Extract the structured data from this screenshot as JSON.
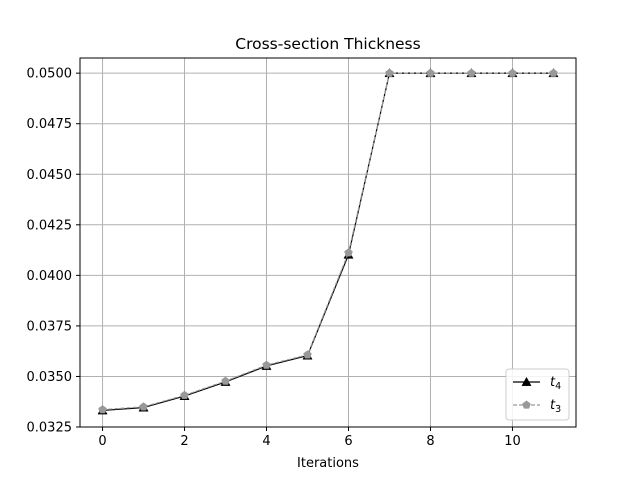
{
  "chart_data": {
    "type": "line",
    "title": "Cross-section Thickness",
    "xlabel": "Iterations",
    "ylabel": "",
    "xlim": [
      -0.55,
      11.55
    ],
    "ylim": [
      0.0325,
      0.05075
    ],
    "x_ticks": [
      0,
      2,
      4,
      6,
      8,
      10
    ],
    "y_ticks": [
      0.0325,
      0.035,
      0.0375,
      0.04,
      0.0425,
      0.045,
      0.0475,
      0.05
    ],
    "x_tick_labels": [
      "0",
      "2",
      "4",
      "6",
      "8",
      "10"
    ],
    "y_tick_labels": [
      "0.0325",
      "0.0350",
      "0.0375",
      "0.0400",
      "0.0425",
      "0.0450",
      "0.0475",
      "0.0500"
    ],
    "grid": true,
    "legend_position": "lower-right",
    "x": [
      0,
      1,
      2,
      3,
      4,
      5,
      6,
      7,
      8,
      9,
      10,
      11
    ],
    "series": [
      {
        "name": "t",
        "subscript": "4",
        "color": "#000000",
        "line_style": "solid",
        "marker": "triangle",
        "values": [
          0.03332,
          0.03346,
          0.03403,
          0.03473,
          0.03552,
          0.03603,
          0.04102,
          0.05,
          0.05,
          0.05,
          0.05,
          0.05
        ]
      },
      {
        "name": "t",
        "subscript": "3",
        "color": "#999999",
        "line_style": "dashed",
        "marker": "pentagon",
        "values": [
          0.03336,
          0.0335,
          0.03407,
          0.03477,
          0.03556,
          0.03607,
          0.04112,
          0.05,
          0.05,
          0.05,
          0.05,
          0.05
        ]
      }
    ]
  }
}
